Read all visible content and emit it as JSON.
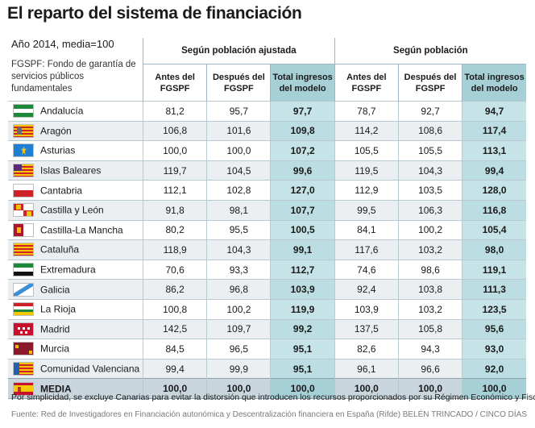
{
  "title": "El reparto del sistema de financiación",
  "subtitle": "Año 2014, media=100",
  "note": "FGSPF: Fondo de garantía de servicios públicos fundamentales",
  "groups": {
    "ajustada": "Según población ajustada",
    "poblacion": "Según población"
  },
  "columns": {
    "antes": "Antes del FGSPF",
    "despues": "Después del FGSPF",
    "total": "Total ingresos del modelo"
  },
  "rows": [
    {
      "name": "Andalucía",
      "a1": "81,2",
      "a2": "95,7",
      "a3": "97,7",
      "b1": "78,7",
      "b2": "92,7",
      "b3": "94,7",
      "flag": "andalucia"
    },
    {
      "name": "Aragón",
      "a1": "106,8",
      "a2": "101,6",
      "a3": "109,8",
      "b1": "114,2",
      "b2": "108,6",
      "b3": "117,4",
      "flag": "aragon"
    },
    {
      "name": "Asturias",
      "a1": "100,0",
      "a2": "100,0",
      "a3": "107,2",
      "b1": "105,5",
      "b2": "105,5",
      "b3": "113,1",
      "flag": "asturias"
    },
    {
      "name": "Islas Baleares",
      "a1": "119,7",
      "a2": "104,5",
      "a3": "99,6",
      "b1": "119,5",
      "b2": "104,3",
      "b3": "99,4",
      "flag": "baleares"
    },
    {
      "name": "Cantabria",
      "a1": "112,1",
      "a2": "102,8",
      "a3": "127,0",
      "b1": "112,9",
      "b2": "103,5",
      "b3": "128,0",
      "flag": "cantabria"
    },
    {
      "name": "Castilla y León",
      "a1": "91,8",
      "a2": "98,1",
      "a3": "107,7",
      "b1": "99,5",
      "b2": "106,3",
      "b3": "116,8",
      "flag": "cyl"
    },
    {
      "name": "Castilla-La Mancha",
      "a1": "80,2",
      "a2": "95,5",
      "a3": "100,5",
      "b1": "84,1",
      "b2": "100,2",
      "b3": "105,4",
      "flag": "clm"
    },
    {
      "name": "Cataluña",
      "a1": "118,9",
      "a2": "104,3",
      "a3": "99,1",
      "b1": "117,6",
      "b2": "103,2",
      "b3": "98,0",
      "flag": "cataluna"
    },
    {
      "name": "Extremadura",
      "a1": "70,6",
      "a2": "93,3",
      "a3": "112,7",
      "b1": "74,6",
      "b2": "98,6",
      "b3": "119,1",
      "flag": "extremadura"
    },
    {
      "name": "Galicia",
      "a1": "86,2",
      "a2": "96,8",
      "a3": "103,9",
      "b1": "92,4",
      "b2": "103,8",
      "b3": "111,3",
      "flag": "galicia"
    },
    {
      "name": "La Rioja",
      "a1": "100,8",
      "a2": "100,2",
      "a3": "119,9",
      "b1": "103,9",
      "b2": "103,2",
      "b3": "123,5",
      "flag": "rioja"
    },
    {
      "name": "Madrid",
      "a1": "142,5",
      "a2": "109,7",
      "a3": "99,2",
      "b1": "137,5",
      "b2": "105,8",
      "b3": "95,6",
      "flag": "madrid"
    },
    {
      "name": "Murcia",
      "a1": "84,5",
      "a2": "96,5",
      "a3": "95,1",
      "b1": "82,6",
      "b2": "94,3",
      "b3": "93,0",
      "flag": "murcia"
    },
    {
      "name": "Comunidad Valenciana",
      "a1": "99,4",
      "a2": "99,9",
      "a3": "95,1",
      "b1": "96,1",
      "b2": "96,6",
      "b3": "92,0",
      "flag": "valencia"
    },
    {
      "name": "MEDIA",
      "a1": "100,0",
      "a2": "100,0",
      "a3": "100,0",
      "b1": "100,0",
      "b2": "100,0",
      "b3": "100,0",
      "flag": "espana"
    }
  ],
  "footnote": "Por simplicidad, se excluye Canarias para evitar la distorsión que introducen los recursos proporcionados por su Régimen Económico y Fiscal",
  "source": "Fuente: Red de Investigadores en Financiación autonómica y Descentralización financiera en España (Rifde)",
  "credit": "BELÉN TRINCADO / CINCO DÍAS"
}
